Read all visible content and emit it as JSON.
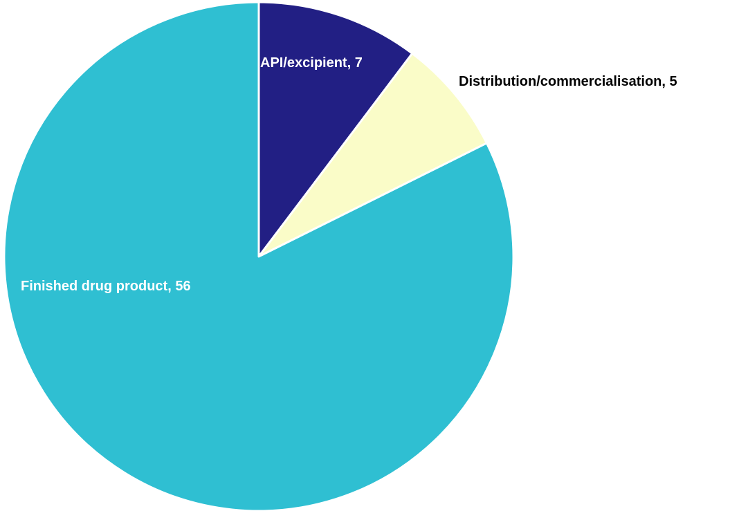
{
  "chart_data": {
    "type": "pie",
    "categories": [
      "API/excipient",
      "Distribution/commercialisation",
      "Finished drug product"
    ],
    "values": [
      7,
      5,
      56
    ],
    "labels": [
      "API/excipient, 7",
      "Distribution/commercialisation, 5",
      "Finished drug product, 56"
    ],
    "colors": [
      "#221f84",
      "#fafcc8",
      "#2fbfd2"
    ],
    "label_colors": [
      "#ffffff",
      "#000000",
      "#ffffff"
    ],
    "label_placement": [
      "inside",
      "outside",
      "inside"
    ],
    "start": "12 o'clock",
    "direction": "clockwise",
    "legend": "none"
  }
}
